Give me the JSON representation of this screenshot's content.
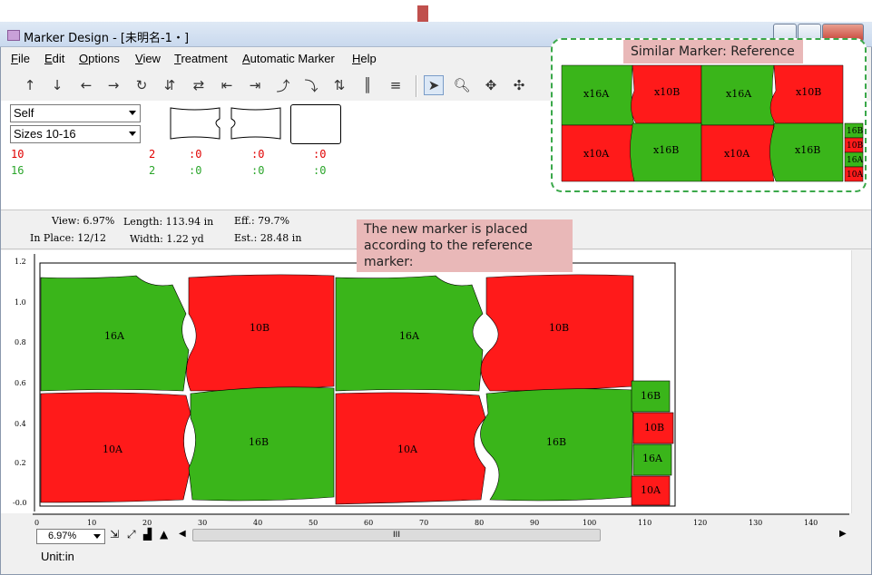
{
  "window": {
    "title": "Marker Design - [未明名-1・]"
  },
  "menu": [
    "File",
    "Edit",
    "Options",
    "View",
    "Treatment",
    "Automatic Marker",
    "Help"
  ],
  "menu_underline": [
    "F",
    "E",
    "O",
    "V",
    "T",
    "A",
    "H"
  ],
  "filters": {
    "style_value": "Self",
    "size_value": "Sizes 10-16"
  },
  "sizes": [
    {
      "size": "10",
      "placed": "2",
      "c1": ":0",
      "c2": ":0",
      "c3": ":0",
      "color": "#e00000"
    },
    {
      "size": "16",
      "placed": "2",
      "c1": ":0",
      "c2": ":0",
      "c3": ":0",
      "color": "#2aa52a"
    }
  ],
  "info": {
    "view_label": "View:",
    "view": "6.97%",
    "length_label": "Length:",
    "length": "113.94 in",
    "eff_label": "Eff.:",
    "eff": "79.7%",
    "inplace_label": "In Place:",
    "inplace": "12/12",
    "width_label": "Width:",
    "width": "1.22 yd",
    "est_label": "Est.:",
    "est": "28.48 in"
  },
  "callouts": {
    "reference": "Similar Marker: Reference",
    "new_marker": "The new marker  is placed according to the reference marker:"
  },
  "reference_pieces": {
    "top": [
      "x16A",
      "x10B",
      "x16A",
      "x10B"
    ],
    "bottom": [
      "x10A",
      "x16B",
      "x10A",
      "x16B"
    ],
    "side": [
      "16B",
      "10B",
      "16A",
      "10A"
    ]
  },
  "marker_pieces": {
    "top": [
      "16A",
      "10B",
      "16A",
      "10B"
    ],
    "bottom": [
      "10A",
      "16B",
      "10A",
      "16B"
    ],
    "side": [
      "16B",
      "10B",
      "16A",
      "10A"
    ]
  },
  "colors": {
    "red": "#ff1a1a",
    "green": "#3ab51a",
    "accent": "#c0504d"
  },
  "ruler_v": [
    "1.2",
    "1.0",
    "0.8",
    "0.6",
    "0.4",
    "0.2",
    "-0.0"
  ],
  "ruler_h": [
    "0",
    "10",
    "20",
    "30",
    "40",
    "50",
    "60",
    "70",
    "80",
    "90",
    "100",
    "110",
    "120",
    "130",
    "140"
  ],
  "zoom": {
    "value": "6.97%"
  },
  "scroll_center": "III",
  "status": {
    "unit": "Unit:in"
  }
}
